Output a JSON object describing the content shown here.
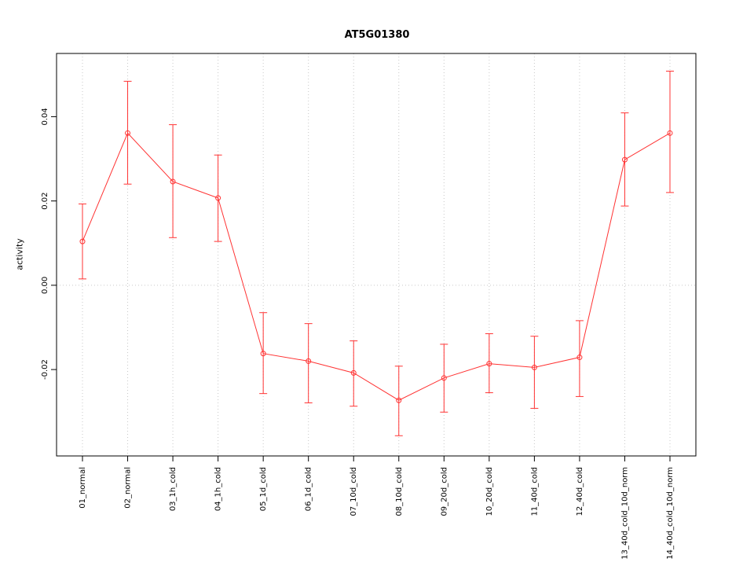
{
  "chart_data": {
    "type": "line",
    "title": "AT5G01380",
    "xlabel": "",
    "ylabel": "activity",
    "categories": [
      "01_normal",
      "02_normal",
      "03_1h_cold",
      "04_1h_cold",
      "05_1d_cold",
      "06_1d_cold",
      "07_10d_cold",
      "08_10d_cold",
      "09_20d_cold",
      "10_20d_cold",
      "11_40d_cold",
      "12_40d_cold",
      "13_40d_cold_10d_norm",
      "14_40d_cold_10d_norm"
    ],
    "values": [
      0.0104,
      0.0361,
      0.0246,
      0.0207,
      -0.0162,
      -0.018,
      -0.0208,
      -0.0273,
      -0.022,
      -0.0186,
      -0.0195,
      -0.0171,
      0.0298,
      0.0361
    ],
    "error_low": [
      0.0015,
      0.024,
      0.0113,
      0.0104,
      -0.0257,
      -0.0279,
      -0.0287,
      -0.0357,
      -0.0301,
      -0.0255,
      -0.0292,
      -0.0264,
      0.0188,
      0.022
    ],
    "error_high": [
      0.0193,
      0.0484,
      0.0381,
      0.0309,
      -0.0065,
      -0.0091,
      -0.0132,
      -0.0192,
      -0.014,
      -0.0115,
      -0.0121,
      -0.0084,
      0.0409,
      0.0508
    ],
    "ytick_values": [
      -0.02,
      0.0,
      0.02,
      0.04
    ],
    "ytick_labels": [
      "-0.02",
      "0.00",
      "0.02",
      "0.04"
    ],
    "ylim": [
      -0.0405,
      0.055
    ],
    "zero_line": 0,
    "grid": "dotted vertical line at each category, dotted horizontal line at 0",
    "legend": "none",
    "series_color": "#FF3333",
    "grid_color": "#C8C8C8",
    "axis_color": "#000000",
    "point_style": "open-circle",
    "error_bars": true
  }
}
